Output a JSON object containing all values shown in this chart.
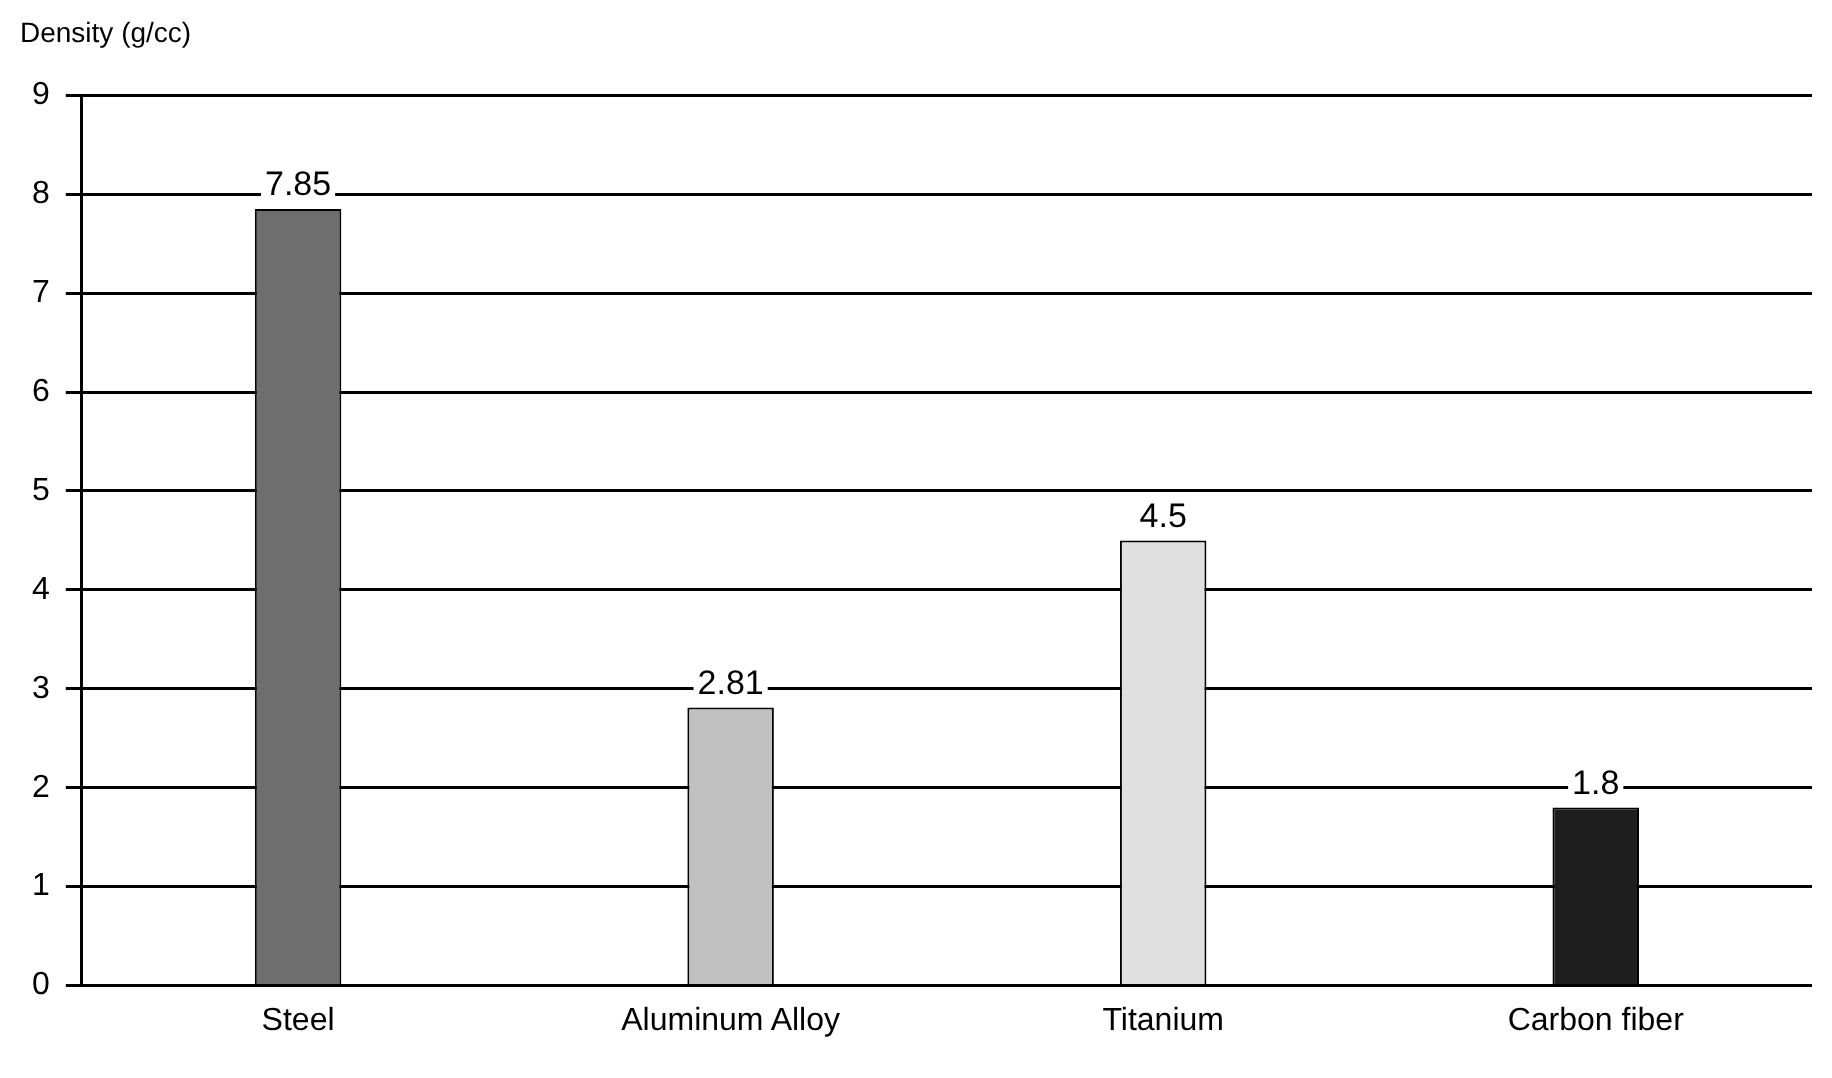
{
  "chart_data": {
    "type": "bar",
    "ylabel": "Density (g/cc)",
    "categories": [
      "Steel",
      "Aluminum Alloy",
      "Titanium",
      "Carbon fiber"
    ],
    "values": [
      7.85,
      2.81,
      4.5,
      1.8
    ],
    "colors": [
      "#6e6e6e",
      "#c0c0c0",
      "#e0e0e0",
      "#1e1e1e"
    ],
    "ylim": [
      0,
      9
    ],
    "yticks": [
      0,
      1,
      2,
      3,
      4,
      5,
      6,
      7,
      8,
      9
    ],
    "grid": "y",
    "data_labels": true
  }
}
